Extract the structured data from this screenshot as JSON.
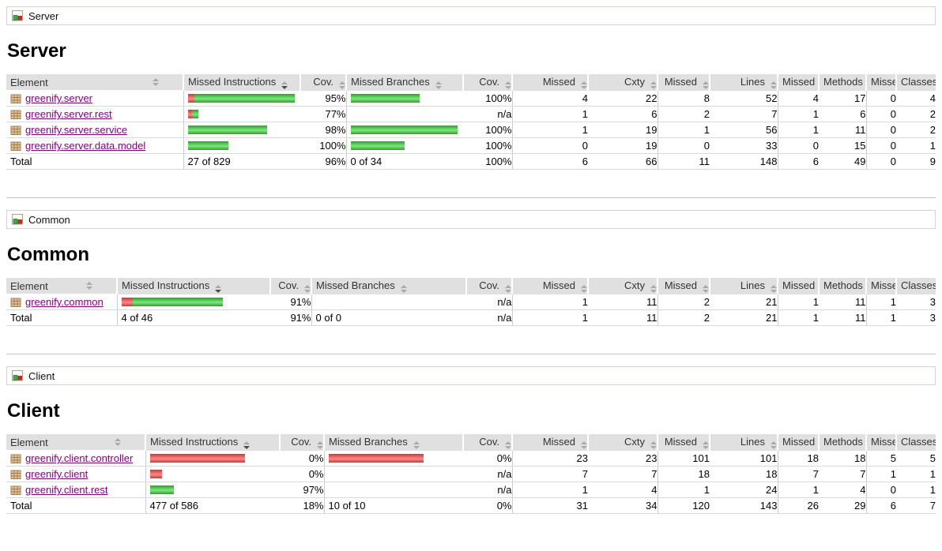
{
  "colors": {
    "bar_green": "#4cc552",
    "bar_red": "#e04a4a",
    "link_visited": "#800080",
    "header_bg": "#e0e0e0"
  },
  "headers": [
    {
      "label": "Element",
      "sort": "none"
    },
    {
      "label": "Missed Instructions",
      "sort": "desc"
    },
    {
      "label": "Cov.",
      "sort": "none"
    },
    {
      "label": "Missed Branches",
      "sort": "none"
    },
    {
      "label": "Cov.",
      "sort": "none"
    },
    {
      "label": "Missed",
      "sort": "none"
    },
    {
      "label": "Cxty",
      "sort": "none"
    },
    {
      "label": "Missed",
      "sort": "none"
    },
    {
      "label": "Lines",
      "sort": "none"
    },
    {
      "label": "Missed",
      "sort": "none"
    },
    {
      "label": "Methods",
      "sort": "none"
    },
    {
      "label": "Missed",
      "sort": "none"
    },
    {
      "label": "Classes",
      "sort": "none"
    }
  ],
  "sections": [
    {
      "breadcrumb": "Server",
      "heading": "Server",
      "rows": [
        {
          "name": "greenify.server",
          "instr_bar": {
            "red": 8,
            "green": 127
          },
          "instr_cov": "95%",
          "branch_bar": {
            "red": 0,
            "green": 87
          },
          "branch_cov": "100%",
          "missed_cxty": "4",
          "cxty": "22",
          "missed_lines": "8",
          "lines": "52",
          "missed_methods": "4",
          "methods": "17",
          "missed_classes": "0",
          "classes": "4"
        },
        {
          "name": "greenify.server.rest",
          "instr_bar": {
            "red": 5,
            "green": 8
          },
          "instr_cov": "77%",
          "branch_bar": {
            "red": 0,
            "green": 0
          },
          "branch_cov": "n/a",
          "missed_cxty": "1",
          "cxty": "6",
          "missed_lines": "2",
          "lines": "7",
          "missed_methods": "1",
          "methods": "6",
          "missed_classes": "0",
          "classes": "2"
        },
        {
          "name": "greenify.server.service",
          "instr_bar": {
            "red": 0,
            "green": 100
          },
          "instr_cov": "98%",
          "branch_bar": {
            "red": 0,
            "green": 135
          },
          "branch_cov": "100%",
          "missed_cxty": "1",
          "cxty": "19",
          "missed_lines": "1",
          "lines": "56",
          "missed_methods": "1",
          "methods": "11",
          "missed_classes": "0",
          "classes": "2"
        },
        {
          "name": "greenify.server.data.model",
          "instr_bar": {
            "red": 0,
            "green": 51
          },
          "instr_cov": "100%",
          "branch_bar": {
            "red": 0,
            "green": 68
          },
          "branch_cov": "100%",
          "missed_cxty": "0",
          "cxty": "19",
          "missed_lines": "0",
          "lines": "33",
          "missed_methods": "0",
          "methods": "15",
          "missed_classes": "0",
          "classes": "1"
        }
      ],
      "total": {
        "label": "Total",
        "instr": "27 of 829",
        "instr_cov": "96%",
        "branch": "0 of 34",
        "branch_cov": "100%",
        "missed_cxty": "6",
        "cxty": "66",
        "missed_lines": "11",
        "lines": "148",
        "missed_methods": "6",
        "methods": "49",
        "missed_classes": "0",
        "classes": "9"
      }
    },
    {
      "breadcrumb": "Common",
      "heading": "Common",
      "rows": [
        {
          "name": "greenify.common",
          "instr_bar": {
            "red": 14,
            "green": 114
          },
          "instr_cov": "91%",
          "branch_bar": {
            "red": 0,
            "green": 0
          },
          "branch_cov": "n/a",
          "missed_cxty": "1",
          "cxty": "11",
          "missed_lines": "2",
          "lines": "21",
          "missed_methods": "1",
          "methods": "11",
          "missed_classes": "1",
          "classes": "3"
        }
      ],
      "total": {
        "label": "Total",
        "instr": "4 of 46",
        "instr_cov": "91%",
        "branch": "0 of 0",
        "branch_cov": "n/a",
        "missed_cxty": "1",
        "cxty": "11",
        "missed_lines": "2",
        "lines": "21",
        "missed_methods": "1",
        "methods": "11",
        "missed_classes": "1",
        "classes": "3"
      }
    },
    {
      "breadcrumb": "Client",
      "heading": "Client",
      "rows": [
        {
          "name": "greenify.client.controller",
          "instr_bar": {
            "red": 120,
            "green": 0
          },
          "instr_cov": "0%",
          "branch_bar": {
            "red": 120,
            "green": 0
          },
          "branch_cov": "0%",
          "missed_cxty": "23",
          "cxty": "23",
          "missed_lines": "101",
          "lines": "101",
          "missed_methods": "18",
          "methods": "18",
          "missed_classes": "5",
          "classes": "5"
        },
        {
          "name": "greenify.client",
          "instr_bar": {
            "red": 15,
            "green": 0
          },
          "instr_cov": "0%",
          "branch_bar": {
            "red": 0,
            "green": 0
          },
          "branch_cov": "n/a",
          "missed_cxty": "7",
          "cxty": "7",
          "missed_lines": "18",
          "lines": "18",
          "missed_methods": "7",
          "methods": "7",
          "missed_classes": "1",
          "classes": "1"
        },
        {
          "name": "greenify.client.rest",
          "instr_bar": {
            "red": 0,
            "green": 30
          },
          "instr_cov": "97%",
          "branch_bar": {
            "red": 0,
            "green": 0
          },
          "branch_cov": "n/a",
          "missed_cxty": "1",
          "cxty": "4",
          "missed_lines": "1",
          "lines": "24",
          "missed_methods": "1",
          "methods": "4",
          "missed_classes": "0",
          "classes": "1"
        }
      ],
      "total": {
        "label": "Total",
        "instr": "477 of 586",
        "instr_cov": "18%",
        "branch": "10 of 10",
        "branch_cov": "0%",
        "missed_cxty": "31",
        "cxty": "34",
        "missed_lines": "120",
        "lines": "143",
        "missed_methods": "26",
        "methods": "29",
        "missed_classes": "6",
        "classes": "7"
      }
    }
  ]
}
